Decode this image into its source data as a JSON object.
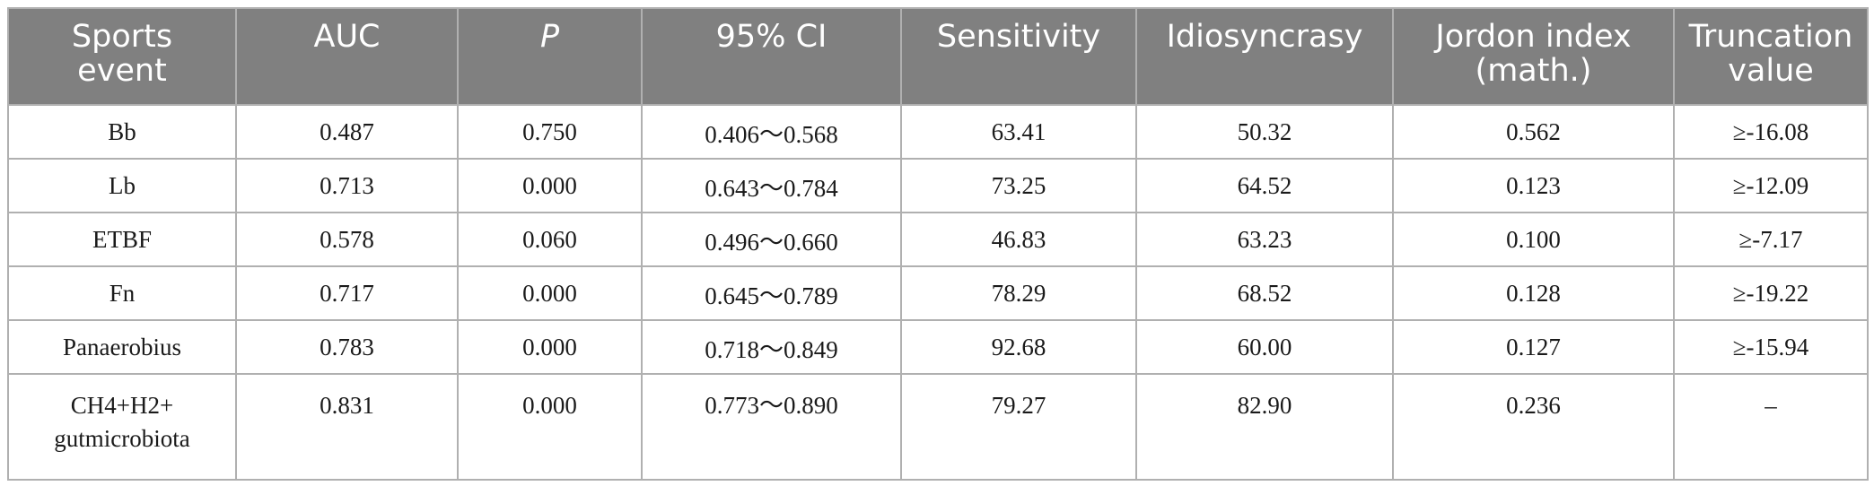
{
  "table": {
    "headers": [
      "Sports\nevent",
      "AUC",
      "P",
      "95% CI",
      "Sensitivity",
      "Idiosyncrasy",
      "Jordon index\n(math.)",
      "Truncation\nvalue"
    ],
    "rows": [
      [
        "Bb",
        "0.487",
        "0.750",
        "0.406～0.568",
        "63.41",
        "50.32",
        "0.562",
        "≥-16.08"
      ],
      [
        "Lb",
        "0.713",
        "0.000",
        "0.643～0.784",
        "73.25",
        "64.52",
        "0.123",
        "≥-12.09"
      ],
      [
        "ETBF",
        "0.578",
        "0.060",
        "0.496～0.660",
        "46.83",
        "63.23",
        "0.100",
        "≥-7.17"
      ],
      [
        "Fn",
        "0.717",
        "0.000",
        "0.645～0.789",
        "78.29",
        "68.52",
        "0.128",
        "≥-19.22"
      ],
      [
        "Panaerobius",
        "0.783",
        "0.000",
        "0.718～0.849",
        "92.68",
        "60.00",
        "0.127",
        "≥-15.94"
      ],
      [
        "CH4+H2+\ngutmicrobiota",
        "0.831",
        "0.000",
        "0.773～0.890",
        "79.27",
        "82.90",
        "0.236",
        "–"
      ]
    ]
  }
}
